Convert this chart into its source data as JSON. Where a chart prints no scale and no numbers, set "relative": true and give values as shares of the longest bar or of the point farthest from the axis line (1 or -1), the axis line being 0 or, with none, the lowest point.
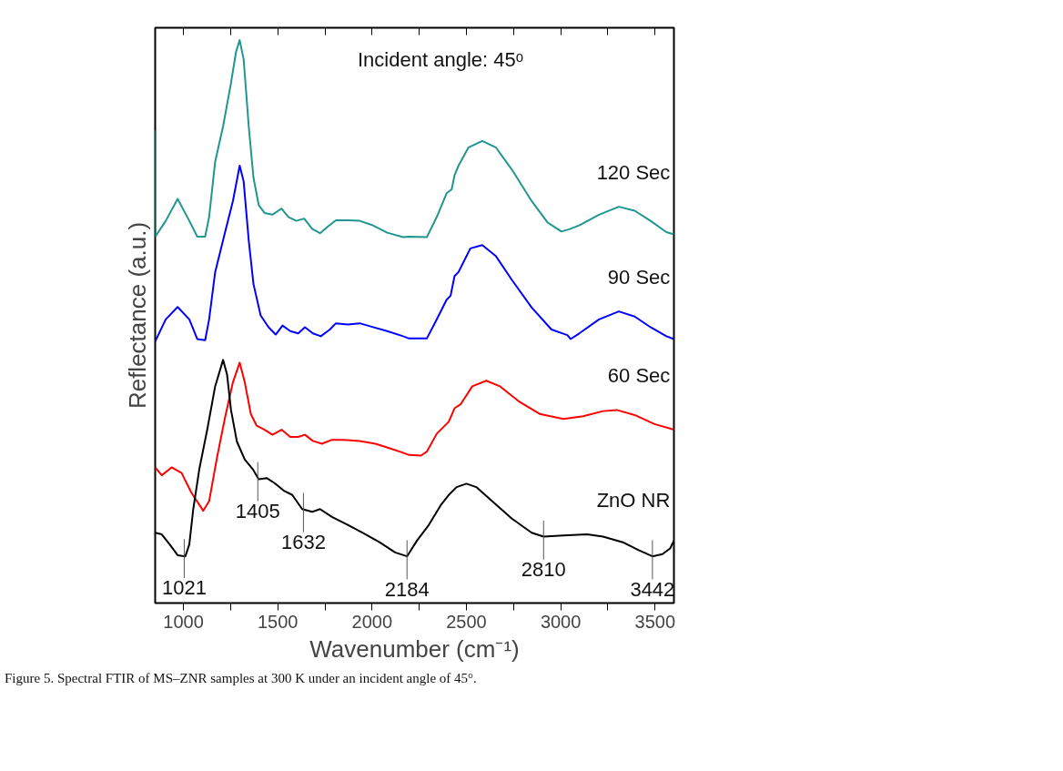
{
  "chart_data": {
    "type": "line",
    "relative": true,
    "xlabel": "Wavenumber (cm⁻¹)",
    "ylabel": "Reflectance (a.u.)",
    "xlim": [
      850,
      3600
    ],
    "xticks": [
      1000,
      {
        "value": 1250,
        "label": null
      },
      1500,
      {
        "value": 1750,
        "label": null
      },
      2000,
      {
        "value": 2250,
        "label": null
      },
      2500,
      {
        "value": 2750,
        "label": null
      },
      3000,
      {
        "value": 3250,
        "label": null
      },
      3500
    ],
    "tick_labels": "x",
    "grid": false,
    "series": [
      {
        "name": "120 Sec",
        "color": "#1f968f",
        "x": [
          850,
          851,
          906,
          969,
          1031,
          1073,
          1115,
          1136,
          1168,
          1210,
          1252,
          1279,
          1298,
          1319,
          1346,
          1371,
          1399,
          1430,
          1472,
          1520,
          1556,
          1598,
          1640,
          1682,
          1724,
          1766,
          1808,
          1871,
          1934,
          1997,
          2080,
          2164,
          2196,
          2290,
          2343,
          2395,
          2422,
          2437,
          2458,
          2510,
          2584,
          2657,
          2741,
          2846,
          2930,
          3004,
          3045,
          3098,
          3203,
          3308,
          3392,
          3476,
          3560,
          3600
        ],
        "values": [
          0.84,
          0.651,
          0.679,
          0.718,
          0.679,
          0.651,
          0.651,
          0.686,
          0.784,
          0.847,
          0.924,
          0.98,
          1.0,
          0.966,
          0.847,
          0.756,
          0.707,
          0.693,
          0.69,
          0.701,
          0.686,
          0.679,
          0.683,
          0.665,
          0.657,
          0.669,
          0.68,
          0.68,
          0.679,
          0.672,
          0.658,
          0.65,
          0.651,
          0.65,
          0.686,
          0.728,
          0.735,
          0.76,
          0.777,
          0.809,
          0.821,
          0.809,
          0.77,
          0.714,
          0.676,
          0.66,
          0.664,
          0.671,
          0.69,
          0.704,
          0.697,
          0.679,
          0.659,
          0.655
        ]
      },
      {
        "name": "90 Sec",
        "color": "#0000ff",
        "x": [
          850,
          906,
          969,
          1031,
          1073,
          1115,
          1136,
          1168,
          1220,
          1262,
          1298,
          1319,
          1346,
          1371,
          1409,
          1451,
          1489,
          1525,
          1566,
          1608,
          1644,
          1686,
          1728,
          1776,
          1808,
          1871,
          1934,
          1997,
          2080,
          2164,
          2196,
          2290,
          2343,
          2395,
          2416,
          2437,
          2458,
          2521,
          2584,
          2657,
          2741,
          2846,
          2951,
          3035,
          3052,
          3098,
          3203,
          3308,
          3392,
          3476,
          3560,
          3600
        ],
        "values": [
          0.465,
          0.504,
          0.526,
          0.504,
          0.469,
          0.467,
          0.504,
          0.588,
          0.658,
          0.714,
          0.777,
          0.749,
          0.644,
          0.567,
          0.511,
          0.49,
          0.477,
          0.493,
          0.483,
          0.479,
          0.49,
          0.479,
          0.474,
          0.486,
          0.497,
          0.495,
          0.497,
          0.491,
          0.483,
          0.474,
          0.47,
          0.47,
          0.504,
          0.539,
          0.546,
          0.581,
          0.588,
          0.63,
          0.636,
          0.616,
          0.574,
          0.525,
          0.486,
          0.476,
          0.469,
          0.479,
          0.504,
          0.518,
          0.509,
          0.49,
          0.474,
          0.469
        ]
      },
      {
        "name": "60 Sec",
        "color": "#ff0000",
        "x": [
          850,
          885,
          937,
          990,
          1042,
          1105,
          1136,
          1178,
          1220,
          1262,
          1298,
          1325,
          1357,
          1388,
          1430,
          1472,
          1520,
          1566,
          1608,
          1644,
          1686,
          1734,
          1787,
          1850,
          1934,
          2018,
          2101,
          2164,
          2196,
          2259,
          2290,
          2343,
          2406,
          2437,
          2469,
          2531,
          2605,
          2678,
          2783,
          2888,
          3014,
          3119,
          3224,
          3297,
          3392,
          3497,
          3600
        ],
        "values": [
          0.241,
          0.227,
          0.241,
          0.231,
          0.196,
          0.164,
          0.181,
          0.259,
          0.329,
          0.392,
          0.427,
          0.392,
          0.336,
          0.315,
          0.308,
          0.299,
          0.308,
          0.295,
          0.295,
          0.299,
          0.288,
          0.283,
          0.29,
          0.29,
          0.288,
          0.283,
          0.274,
          0.267,
          0.263,
          0.262,
          0.269,
          0.301,
          0.322,
          0.346,
          0.353,
          0.385,
          0.395,
          0.385,
          0.357,
          0.336,
          0.327,
          0.332,
          0.341,
          0.343,
          0.334,
          0.318,
          0.308
        ]
      },
      {
        "name": "ZnO NR",
        "color": "#000000",
        "x": [
          850,
          885,
          927,
          969,
          1010,
          1031,
          1052,
          1084,
          1126,
          1168,
          1210,
          1231,
          1252,
          1283,
          1325,
          1367,
          1399,
          1441,
          1483,
          1535,
          1577,
          1629,
          1682,
          1724,
          1787,
          1871,
          1955,
          2039,
          2122,
          2185,
          2238,
          2301,
          2364,
          2406,
          2448,
          2500,
          2552,
          2636,
          2741,
          2846,
          2909,
          3014,
          3140,
          3224,
          3329,
          3413,
          3486,
          3539,
          3580,
          3600
        ],
        "values": [
          0.125,
          0.122,
          0.104,
          0.085,
          0.083,
          0.104,
          0.167,
          0.238,
          0.308,
          0.385,
          0.432,
          0.406,
          0.343,
          0.287,
          0.255,
          0.238,
          0.22,
          0.222,
          0.213,
          0.199,
          0.192,
          0.167,
          0.162,
          0.167,
          0.153,
          0.139,
          0.124,
          0.108,
          0.09,
          0.083,
          0.111,
          0.139,
          0.174,
          0.192,
          0.206,
          0.212,
          0.206,
          0.181,
          0.15,
          0.125,
          0.118,
          0.12,
          0.122,
          0.118,
          0.108,
          0.094,
          0.083,
          0.087,
          0.097,
          0.111
        ]
      }
    ],
    "annotations": [
      "Incident angle: 45ᵒ",
      {
        "text": "1021",
        "x": 1004,
        "y": 0.085
      },
      {
        "text": "1405",
        "x": 1394,
        "y": 0.222
      },
      {
        "text": "1632",
        "x": 1636,
        "y": 0.167
      },
      {
        "text": "2184",
        "x": 2185,
        "y": 0.083
      },
      {
        "text": "2810",
        "x": 2909,
        "y": 0.118
      },
      {
        "text": "3442",
        "x": 3486,
        "y": 0.083
      },
      "Figure 5. Spectral FTIR of MS–ZNR samples at 300 K under an incident angle of 45°."
    ]
  }
}
